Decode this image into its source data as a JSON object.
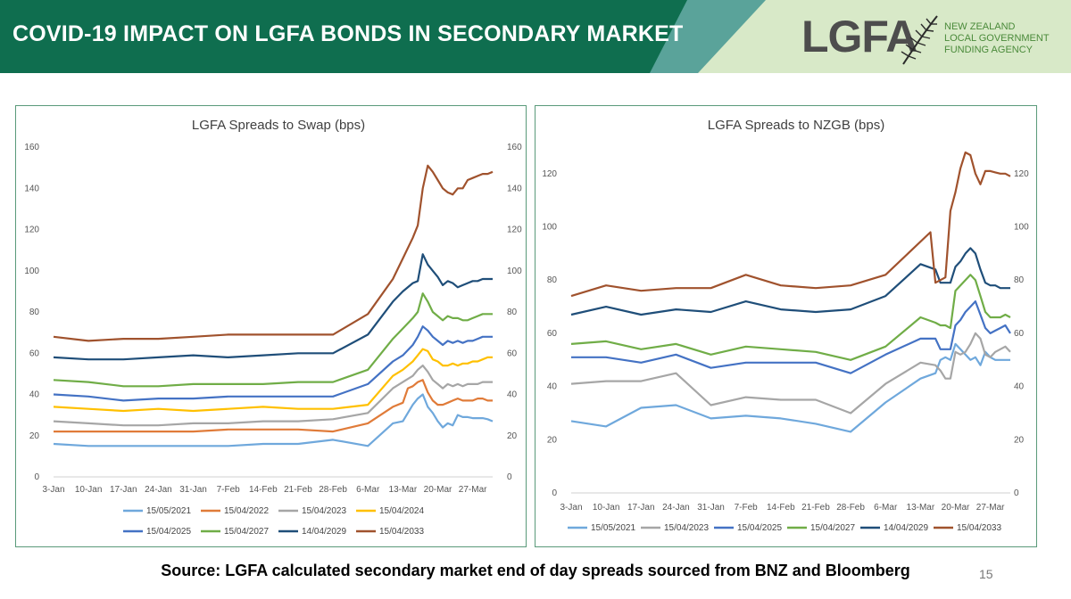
{
  "header": {
    "title": "COVID-19 IMPACT ON LGFA BONDS IN SECONDARY MARKET",
    "logo_text": "LGFA",
    "logo_sub": [
      "NEW ZEALAND",
      "LOCAL GOVERNMENT",
      "FUNDING AGENCY"
    ]
  },
  "colors": {
    "header_green": "#0f6e4f",
    "header_teal": "#5aa39a",
    "header_lightgreen": "#d8e9c8",
    "panel_border": "#5a9a7a"
  },
  "chart_data": [
    {
      "type": "line",
      "title": "LGFA Spreads to Swap (bps)",
      "ylim": [
        0,
        160
      ],
      "yticks": [
        0,
        20,
        40,
        60,
        80,
        100,
        120,
        140,
        160
      ],
      "secondary_axis": true,
      "grid": false,
      "legend": "bottom",
      "x_ticks": [
        "3-Jan",
        "10-Jan",
        "17-Jan",
        "24-Jan",
        "31-Jan",
        "7-Feb",
        "14-Feb",
        "21-Feb",
        "28-Feb",
        "6-Mar",
        "13-Mar",
        "20-Mar",
        "27-Mar"
      ],
      "x_range": [
        0,
        88
      ],
      "x_days_note": "x = days since 3-Jan",
      "series": [
        {
          "name": "15/05/2021",
          "color": "#6fa8dc",
          "x": [
            0,
            7,
            14,
            21,
            28,
            35,
            42,
            49,
            56,
            63,
            68,
            70,
            72,
            73,
            74,
            75,
            76,
            77,
            78,
            79,
            80,
            81,
            82,
            83,
            84,
            85,
            86,
            87,
            88
          ],
          "y": [
            16,
            15,
            15,
            15,
            15,
            15,
            16,
            16,
            18,
            15,
            26,
            27,
            35,
            38,
            40,
            34,
            31,
            27,
            24,
            26,
            25,
            30,
            29,
            29,
            28.5,
            28.5,
            28.5,
            28,
            27
          ]
        },
        {
          "name": "15/04/2022",
          "color": "#e07b39",
          "x": [
            0,
            7,
            14,
            21,
            28,
            35,
            42,
            49,
            56,
            63,
            68,
            70,
            71,
            72,
            73,
            74,
            75,
            76,
            77,
            78,
            79,
            80,
            81,
            82,
            83,
            84,
            85,
            86,
            87,
            88
          ],
          "y": [
            22,
            22,
            22,
            22,
            22,
            23,
            23,
            23,
            22,
            26,
            34,
            36,
            43,
            44,
            46,
            47,
            41,
            37,
            35,
            35,
            36,
            37,
            38,
            37,
            37,
            37,
            38,
            38,
            37,
            37
          ]
        },
        {
          "name": "15/04/2023",
          "color": "#a6a6a6",
          "x": [
            0,
            7,
            14,
            21,
            28,
            35,
            42,
            49,
            56,
            63,
            68,
            70,
            72,
            73,
            74,
            75,
            76,
            77,
            78,
            79,
            80,
            81,
            82,
            83,
            84,
            85,
            86,
            87,
            88
          ],
          "y": [
            27,
            26,
            25,
            25,
            26,
            26,
            27,
            27,
            28,
            31,
            43,
            46,
            49,
            52,
            54,
            51,
            47,
            45,
            43,
            45,
            44,
            45,
            44,
            45,
            45,
            45,
            46,
            46,
            46
          ]
        },
        {
          "name": "15/04/2024",
          "color": "#ffc000",
          "x": [
            0,
            7,
            14,
            21,
            28,
            35,
            42,
            49,
            56,
            63,
            68,
            70,
            72,
            73,
            74,
            75,
            76,
            77,
            78,
            79,
            80,
            81,
            82,
            83,
            84,
            85,
            86,
            87,
            88
          ],
          "y": [
            34,
            33,
            32,
            33,
            32,
            33,
            34,
            33,
            33,
            35,
            49,
            52,
            56,
            59,
            62,
            61,
            57,
            56,
            54,
            54,
            55,
            54,
            55,
            55,
            56,
            56,
            57,
            58,
            58
          ]
        },
        {
          "name": "15/04/2025",
          "color": "#4472c4",
          "x": [
            0,
            7,
            14,
            21,
            28,
            35,
            42,
            49,
            56,
            63,
            68,
            70,
            72,
            73,
            74,
            75,
            76,
            77,
            78,
            79,
            80,
            81,
            82,
            83,
            84,
            85,
            86,
            87,
            88
          ],
          "y": [
            40,
            39,
            37,
            38,
            38,
            39,
            39,
            39,
            39,
            45,
            56,
            59,
            64,
            68,
            73,
            71,
            68,
            66,
            64,
            66,
            65,
            66,
            65,
            66,
            66,
            67,
            68,
            68,
            68
          ]
        },
        {
          "name": "15/04/2027",
          "color": "#70ad47",
          "x": [
            0,
            7,
            14,
            21,
            28,
            35,
            42,
            49,
            56,
            63,
            68,
            70,
            72,
            73,
            74,
            75,
            76,
            77,
            78,
            79,
            80,
            81,
            82,
            83,
            84,
            85,
            86,
            87,
            88
          ],
          "y": [
            47,
            46,
            44,
            44,
            45,
            45,
            45,
            46,
            46,
            52,
            67,
            72,
            77,
            80,
            89,
            85,
            80,
            78,
            76,
            78,
            77,
            77,
            76,
            76,
            77,
            78,
            79,
            79,
            79
          ]
        },
        {
          "name": "14/04/2029",
          "color": "#1f4e79",
          "x": [
            0,
            7,
            14,
            21,
            28,
            35,
            42,
            49,
            56,
            63,
            68,
            70,
            72,
            73,
            74,
            75,
            76,
            77,
            78,
            79,
            80,
            81,
            82,
            83,
            84,
            85,
            86,
            87,
            88
          ],
          "y": [
            58,
            57,
            57,
            58,
            59,
            58,
            59,
            60,
            60,
            69,
            85,
            90,
            94,
            95,
            108,
            103,
            100,
            97,
            93,
            95,
            94,
            92,
            93,
            94,
            95,
            95,
            96,
            96,
            96
          ]
        },
        {
          "name": "15/04/2033",
          "color": "#a0522d",
          "x": [
            0,
            7,
            14,
            21,
            28,
            35,
            42,
            49,
            56,
            63,
            68,
            70,
            72,
            73,
            74,
            75,
            76,
            77,
            78,
            79,
            80,
            81,
            82,
            83,
            84,
            85,
            86,
            87,
            88
          ],
          "y": [
            68,
            66,
            67,
            67,
            68,
            69,
            69,
            69,
            69,
            79,
            96,
            106,
            116,
            122,
            140,
            151,
            148,
            144,
            140,
            138,
            137,
            140,
            140,
            144,
            145,
            146,
            147,
            147,
            148
          ]
        }
      ]
    },
    {
      "type": "line",
      "title": "LGFA Spreads to NZGB (bps)",
      "ylim": [
        0,
        130
      ],
      "yticks": [
        0,
        20,
        40,
        60,
        80,
        100,
        120
      ],
      "secondary_axis": true,
      "grid": false,
      "legend": "bottom",
      "x_ticks": [
        "3-Jan",
        "10-Jan",
        "17-Jan",
        "24-Jan",
        "31-Jan",
        "7-Feb",
        "14-Feb",
        "21-Feb",
        "28-Feb",
        "6-Mar",
        "13-Mar",
        "20-Mar",
        "27-Mar"
      ],
      "x_range": [
        0,
        88
      ],
      "series": [
        {
          "name": "15/05/2021",
          "color": "#6fa8dc",
          "x": [
            0,
            7,
            14,
            21,
            28,
            35,
            42,
            49,
            56,
            63,
            70,
            73,
            74,
            75,
            76,
            77,
            78,
            79,
            80,
            81,
            82,
            83,
            84,
            85,
            86,
            87,
            88
          ],
          "y": [
            27,
            25,
            32,
            33,
            28,
            29,
            28,
            26,
            23,
            34,
            43,
            45,
            50,
            51,
            50,
            56,
            54,
            52,
            50,
            51,
            48,
            53,
            51,
            50,
            50,
            50,
            50
          ]
        },
        {
          "name": "15/04/2023",
          "color": "#a6a6a6",
          "x": [
            0,
            7,
            14,
            21,
            28,
            35,
            42,
            49,
            56,
            63,
            70,
            73,
            74,
            75,
            76,
            77,
            78,
            79,
            80,
            81,
            82,
            83,
            84,
            85,
            86,
            87,
            88
          ],
          "y": [
            41,
            42,
            42,
            45,
            33,
            36,
            35,
            35,
            30,
            41,
            49,
            48,
            46,
            43,
            43,
            53,
            52,
            53,
            56,
            60,
            58,
            52,
            51,
            53,
            54,
            55,
            53
          ]
        },
        {
          "name": "15/04/2025",
          "color": "#4472c4",
          "x": [
            0,
            7,
            14,
            21,
            28,
            35,
            42,
            49,
            56,
            63,
            70,
            73,
            74,
            75,
            76,
            77,
            78,
            79,
            80,
            81,
            82,
            83,
            84,
            85,
            86,
            87,
            88
          ],
          "y": [
            51,
            51,
            49,
            52,
            47,
            49,
            49,
            49,
            45,
            52,
            58,
            58,
            54,
            54,
            54,
            63,
            65,
            68,
            70,
            72,
            67,
            62,
            60,
            61,
            62,
            63,
            60
          ]
        },
        {
          "name": "15/04/2027",
          "color": "#70ad47",
          "x": [
            0,
            7,
            14,
            21,
            28,
            35,
            42,
            49,
            56,
            63,
            70,
            73,
            74,
            75,
            76,
            77,
            78,
            79,
            80,
            81,
            82,
            83,
            84,
            85,
            86,
            87,
            88
          ],
          "y": [
            56,
            57,
            54,
            56,
            52,
            55,
            54,
            53,
            50,
            55,
            66,
            64,
            63,
            63,
            62,
            76,
            78,
            80,
            82,
            80,
            74,
            68,
            66,
            66,
            66,
            67,
            66
          ]
        },
        {
          "name": "14/04/2029",
          "color": "#1f4e79",
          "x": [
            0,
            7,
            14,
            21,
            28,
            35,
            42,
            49,
            56,
            63,
            70,
            73,
            74,
            75,
            76,
            77,
            78,
            79,
            80,
            81,
            82,
            83,
            84,
            85,
            86,
            87,
            88
          ],
          "y": [
            67,
            70,
            67,
            69,
            68,
            72,
            69,
            68,
            69,
            74,
            86,
            84,
            79,
            79,
            79,
            85,
            87,
            90,
            92,
            90,
            84,
            79,
            78,
            78,
            77,
            77,
            77
          ]
        },
        {
          "name": "15/04/2033",
          "color": "#a0522d",
          "x": [
            0,
            7,
            14,
            21,
            28,
            35,
            42,
            49,
            56,
            63,
            72,
            73,
            74,
            75,
            76,
            77,
            78,
            79,
            80,
            81,
            82,
            83,
            84,
            85,
            86,
            87,
            88
          ],
          "y": [
            74,
            78,
            76,
            77,
            77,
            82,
            78,
            77,
            78,
            82,
            98,
            79,
            80,
            81,
            106,
            113,
            122,
            128,
            127,
            120,
            116,
            121,
            121,
            120.5,
            120,
            120,
            119
          ]
        }
      ]
    }
  ],
  "footer": {
    "source": "Source: LGFA calculated secondary market end of day spreads sourced from BNZ and Bloomberg",
    "page": "15"
  }
}
